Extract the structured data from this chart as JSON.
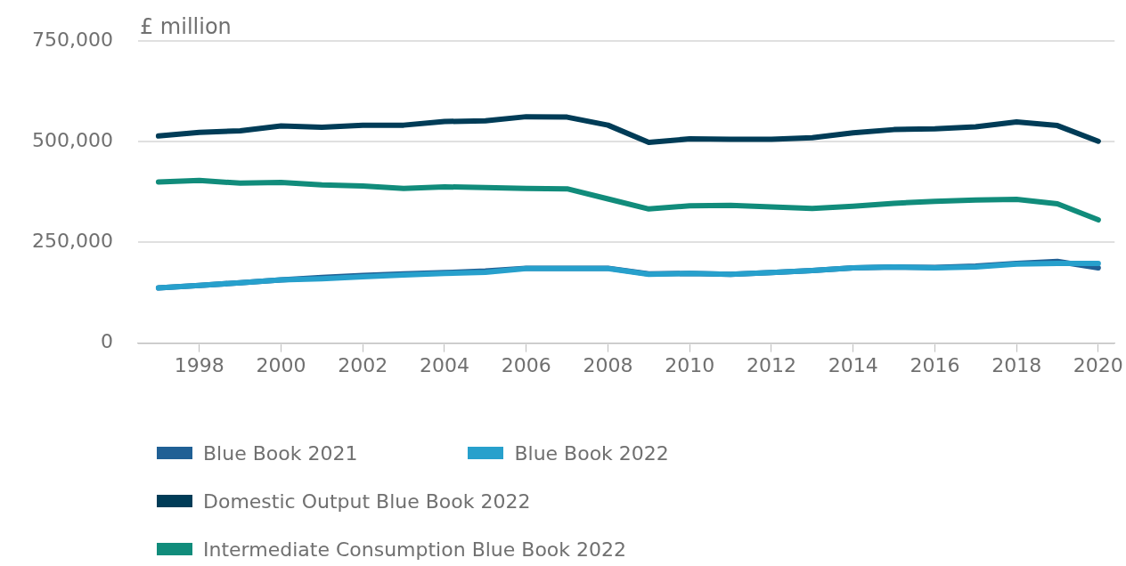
{
  "chart_data": {
    "type": "line",
    "ylabel": "£ million",
    "x": [
      1997,
      1998,
      1999,
      2000,
      2001,
      2002,
      2003,
      2004,
      2005,
      2006,
      2007,
      2008,
      2009,
      2010,
      2011,
      2012,
      2013,
      2014,
      2015,
      2016,
      2017,
      2018,
      2019,
      2020
    ],
    "xlim": [
      1996.5,
      2020.4
    ],
    "xticks": [
      1998,
      2000,
      2002,
      2004,
      2006,
      2008,
      2010,
      2012,
      2014,
      2016,
      2018,
      2020
    ],
    "ylim": [
      0,
      750000
    ],
    "yticks": [
      {
        "value": 0,
        "label": "0"
      },
      {
        "value": 250000,
        "label": "250,000"
      },
      {
        "value": 500000,
        "label": "500,000"
      },
      {
        "value": 750000,
        "label": "750,000"
      }
    ],
    "grid": "y",
    "legend": "bottom",
    "marker": "none",
    "line_style": "solid",
    "series": [
      {
        "name": "Blue Book 2021",
        "color": "#206095",
        "values": [
          137000,
          143000,
          150000,
          157000,
          163000,
          168000,
          172000,
          175000,
          179000,
          186000,
          186000,
          186000,
          172000,
          173000,
          171000,
          175000,
          180000,
          187000,
          189000,
          188000,
          191000,
          198000,
          203000,
          187000
        ]
      },
      {
        "name": "Blue Book 2022",
        "color": "#27a0cc",
        "values": [
          137000,
          143000,
          150000,
          157000,
          160000,
          165000,
          169000,
          173000,
          176000,
          185000,
          185000,
          185000,
          171000,
          173000,
          171000,
          175000,
          180000,
          187000,
          189000,
          187000,
          189000,
          196000,
          198000,
          198000
        ]
      },
      {
        "name": "Domestic Output Blue Book 2022",
        "color": "#003c57",
        "values": [
          514000,
          523000,
          527000,
          539000,
          536000,
          541000,
          541000,
          550000,
          552000,
          562000,
          561000,
          541000,
          498000,
          507000,
          506000,
          506000,
          510000,
          522000,
          530000,
          532000,
          537000,
          549000,
          540000,
          501000
        ]
      },
      {
        "name": "Intermediate Consumption Blue Book 2022",
        "color": "#118c7b",
        "values": [
          400000,
          404000,
          397000,
          399000,
          393000,
          390000,
          384000,
          388000,
          386000,
          384000,
          383000,
          358000,
          333000,
          341000,
          342000,
          338000,
          334000,
          340000,
          347000,
          352000,
          355000,
          357000,
          346000,
          306000
        ]
      }
    ]
  }
}
